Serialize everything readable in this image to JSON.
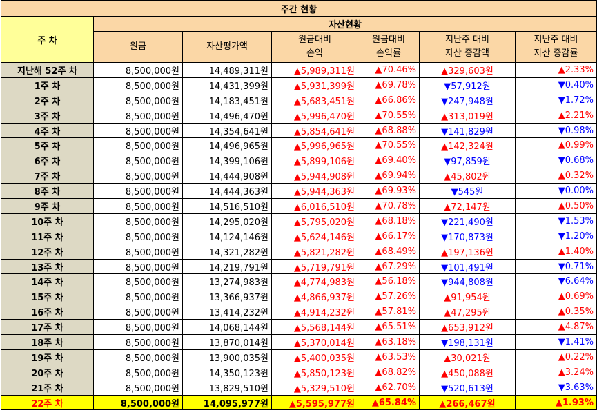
{
  "title": "주간 현황",
  "group_header": "자산현황",
  "week_header": "주 차",
  "columns": {
    "principal": "원금",
    "asset_value": "자산평가액",
    "pl_line1": "원금대비",
    "pl_line2": "손익",
    "plr_line1": "원금대비",
    "plr_line2": "손익률",
    "chg_line1": "지난주 대비",
    "chg_line2": "자산 증감액",
    "chgr_line1": "지난주 대비",
    "chgr_line2": "자산 증감률"
  },
  "arrows": {
    "up": "▲",
    "down": "▼"
  },
  "rows": [
    {
      "week": "지난해 52주 차",
      "principal": "8,500,000원",
      "asset": "14,489,311원",
      "pl": "5,989,311원",
      "pl_dir": "up",
      "plr": "70.46%",
      "plr_dir": "up",
      "chg": "329,603원",
      "chg_dir": "up",
      "chgr": "2.33%",
      "chgr_dir": "up"
    },
    {
      "week": "1주 차",
      "principal": "8,500,000원",
      "asset": "14,431,399원",
      "pl": "5,931,399원",
      "pl_dir": "up",
      "plr": "69.78%",
      "plr_dir": "up",
      "chg": "57,912원",
      "chg_dir": "down",
      "chgr": "0.40%",
      "chgr_dir": "down"
    },
    {
      "week": "2주 차",
      "principal": "8,500,000원",
      "asset": "14,183,451원",
      "pl": "5,683,451원",
      "pl_dir": "up",
      "plr": "66.86%",
      "plr_dir": "up",
      "chg": "247,948원",
      "chg_dir": "down",
      "chgr": "1.72%",
      "chgr_dir": "down"
    },
    {
      "week": "3주 차",
      "principal": "8,500,000원",
      "asset": "14,496,470원",
      "pl": "5,996,470원",
      "pl_dir": "up",
      "plr": "70.55%",
      "plr_dir": "up",
      "chg": "313,019원",
      "chg_dir": "up",
      "chgr": "2.21%",
      "chgr_dir": "up"
    },
    {
      "week": "4주 차",
      "principal": "8,500,000원",
      "asset": "14,354,641원",
      "pl": "5,854,641원",
      "pl_dir": "up",
      "plr": "68.88%",
      "plr_dir": "up",
      "chg": "141,829원",
      "chg_dir": "down",
      "chgr": "0.98%",
      "chgr_dir": "down"
    },
    {
      "week": "5주 차",
      "principal": "8,500,000원",
      "asset": "14,496,965원",
      "pl": "5,996,965원",
      "pl_dir": "up",
      "plr": "70.55%",
      "plr_dir": "up",
      "chg": "142,324원",
      "chg_dir": "up",
      "chgr": "0.99%",
      "chgr_dir": "up"
    },
    {
      "week": "6주 차",
      "principal": "8,500,000원",
      "asset": "14,399,106원",
      "pl": "5,899,106원",
      "pl_dir": "up",
      "plr": "69.40%",
      "plr_dir": "up",
      "chg": "97,859원",
      "chg_dir": "down",
      "chgr": "0.68%",
      "chgr_dir": "down"
    },
    {
      "week": "7주 차",
      "principal": "8,500,000원",
      "asset": "14,444,908원",
      "pl": "5,944,908원",
      "pl_dir": "up",
      "plr": "69.94%",
      "plr_dir": "up",
      "chg": "45,802원",
      "chg_dir": "up",
      "chgr": "0.32%",
      "chgr_dir": "up"
    },
    {
      "week": "8주 차",
      "principal": "8,500,000원",
      "asset": "14,444,363원",
      "pl": "5,944,363원",
      "pl_dir": "up",
      "plr": "69.93%",
      "plr_dir": "up",
      "chg": "545원",
      "chg_dir": "down",
      "chgr": "0.00%",
      "chgr_dir": "down"
    },
    {
      "week": "9주 차",
      "principal": "8,500,000원",
      "asset": "14,516,510원",
      "pl": "6,016,510원",
      "pl_dir": "up",
      "plr": "70.78%",
      "plr_dir": "up",
      "chg": "72,147원",
      "chg_dir": "up",
      "chgr": "0.50%",
      "chgr_dir": "up"
    },
    {
      "week": "10주 차",
      "principal": "8,500,000원",
      "asset": "14,295,020원",
      "pl": "5,795,020원",
      "pl_dir": "up",
      "plr": "68.18%",
      "plr_dir": "up",
      "chg": "221,490원",
      "chg_dir": "down",
      "chgr": "1.53%",
      "chgr_dir": "down"
    },
    {
      "week": "11주 차",
      "principal": "8,500,000원",
      "asset": "14,124,146원",
      "pl": "5,624,146원",
      "pl_dir": "up",
      "plr": "66.17%",
      "plr_dir": "up",
      "chg": "170,873원",
      "chg_dir": "down",
      "chgr": "1.20%",
      "chgr_dir": "down"
    },
    {
      "week": "12주 차",
      "principal": "8,500,000원",
      "asset": "14,321,282원",
      "pl": "5,821,282원",
      "pl_dir": "up",
      "plr": "68.49%",
      "plr_dir": "up",
      "chg": "197,136원",
      "chg_dir": "up",
      "chgr": "1.40%",
      "chgr_dir": "up"
    },
    {
      "week": "13주 차",
      "principal": "8,500,000원",
      "asset": "14,219,791원",
      "pl": "5,719,791원",
      "pl_dir": "up",
      "plr": "67.29%",
      "plr_dir": "up",
      "chg": "101,491원",
      "chg_dir": "down",
      "chgr": "0.71%",
      "chgr_dir": "down"
    },
    {
      "week": "14주 차",
      "principal": "8,500,000원",
      "asset": "13,274,983원",
      "pl": "4,774,983원",
      "pl_dir": "up",
      "plr": "56.18%",
      "plr_dir": "up",
      "chg": "944,808원",
      "chg_dir": "down",
      "chgr": "6.64%",
      "chgr_dir": "down"
    },
    {
      "week": "15주 차",
      "principal": "8,500,000원",
      "asset": "13,366,937원",
      "pl": "4,866,937원",
      "pl_dir": "up",
      "plr": "57.26%",
      "plr_dir": "up",
      "chg": "91,954원",
      "chg_dir": "up",
      "chgr": "0.69%",
      "chgr_dir": "up"
    },
    {
      "week": "16주 차",
      "principal": "8,500,000원",
      "asset": "13,414,232원",
      "pl": "4,914,232원",
      "pl_dir": "up",
      "plr": "57.81%",
      "plr_dir": "up",
      "chg": "47,295원",
      "chg_dir": "up",
      "chgr": "0.35%",
      "chgr_dir": "up"
    },
    {
      "week": "17주 차",
      "principal": "8,500,000원",
      "asset": "14,068,144원",
      "pl": "5,568,144원",
      "pl_dir": "up",
      "plr": "65.51%",
      "plr_dir": "up",
      "chg": "653,912원",
      "chg_dir": "up",
      "chgr": "4.87%",
      "chgr_dir": "up"
    },
    {
      "week": "18주 차",
      "principal": "8,500,000원",
      "asset": "13,870,014원",
      "pl": "5,370,014원",
      "pl_dir": "up",
      "plr": "63.18%",
      "plr_dir": "up",
      "chg": "198,131원",
      "chg_dir": "down",
      "chgr": "1.41%",
      "chgr_dir": "down"
    },
    {
      "week": "19주 차",
      "principal": "8,500,000원",
      "asset": "13,900,035원",
      "pl": "5,400,035원",
      "pl_dir": "up",
      "plr": "63.53%",
      "plr_dir": "up",
      "chg": "30,021원",
      "chg_dir": "up",
      "chgr": "0.22%",
      "chgr_dir": "up"
    },
    {
      "week": "20주 차",
      "principal": "8,500,000원",
      "asset": "14,350,123원",
      "pl": "5,850,123원",
      "pl_dir": "up",
      "plr": "68.82%",
      "plr_dir": "up",
      "chg": "450,088원",
      "chg_dir": "up",
      "chgr": "3.24%",
      "chgr_dir": "up"
    },
    {
      "week": "21주 차",
      "principal": "8,500,000원",
      "asset": "13,829,510원",
      "pl": "5,329,510원",
      "pl_dir": "up",
      "plr": "62.70%",
      "plr_dir": "up",
      "chg": "520,613원",
      "chg_dir": "down",
      "chgr": "3.63%",
      "chgr_dir": "down"
    },
    {
      "week": "22주 차",
      "principal": "8,500,000원",
      "asset": "14,095,977원",
      "pl": "5,595,977원",
      "pl_dir": "up",
      "plr": "65.84%",
      "plr_dir": "up",
      "chg": "266,467원",
      "chg_dir": "up",
      "chgr": "1.93%",
      "chgr_dir": "up",
      "current": true
    }
  ],
  "colors": {
    "header_bg": "#fbd7a6",
    "week_bg": "#ddd9c4",
    "week_hdr_bg": "#ffff99",
    "current_bg": "#ffff00",
    "up": "#ff0000",
    "down": "#0000ff"
  }
}
